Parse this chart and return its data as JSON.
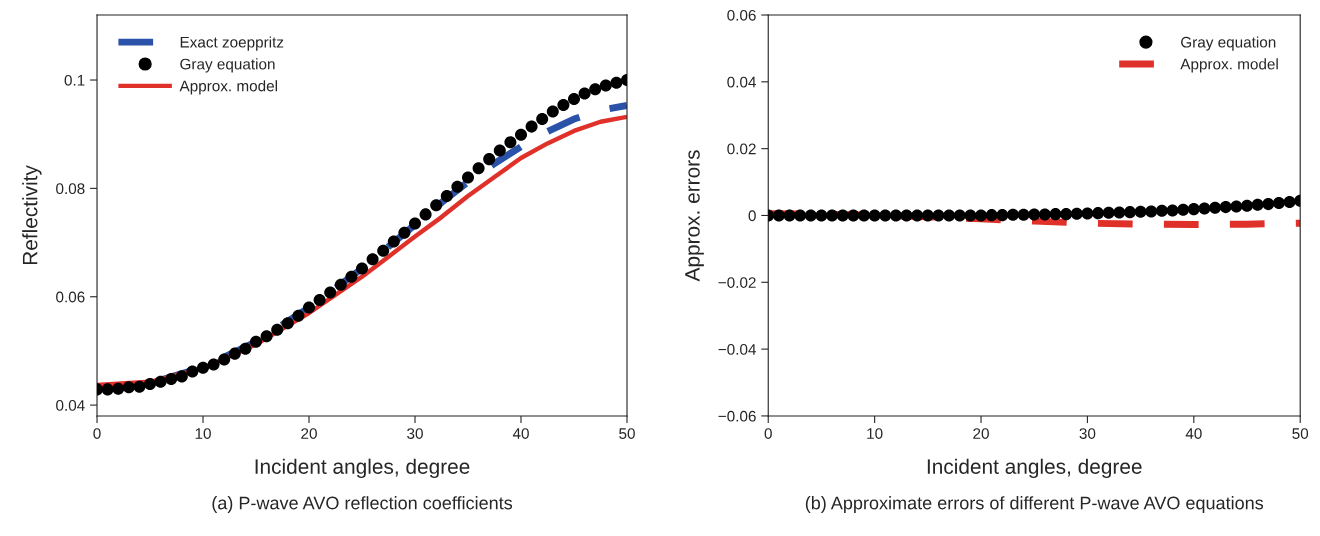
{
  "chart_data": [
    {
      "type": "line",
      "xlabel": "Incident angles, degree",
      "ylabel": "Reflectivity",
      "xlim": [
        0,
        50
      ],
      "ylim": [
        0.038,
        0.112
      ],
      "xticks": [
        0,
        10,
        20,
        30,
        40,
        50
      ],
      "yticks": [
        0.04,
        0.06,
        0.08,
        0.1
      ],
      "legend": "top left",
      "grid": false,
      "annotations": [
        "(a) P-wave AVO reflection coefficients"
      ],
      "series": [
        {
          "name": "Exact zoeppritz",
          "type": "line",
          "line_style": "dashed",
          "color": "#2a52a8",
          "x": [
            0,
            5,
            10,
            15,
            20,
            25,
            30,
            32.5,
            35,
            37.5,
            40,
            42.5,
            45,
            47.5,
            50
          ],
          "values": [
            0.0432,
            0.044,
            0.047,
            0.0517,
            0.058,
            0.0652,
            0.0733,
            0.0774,
            0.0812,
            0.0846,
            0.0877,
            0.0905,
            0.0928,
            0.0944,
            0.0953
          ]
        },
        {
          "name": "Gray equation",
          "type": "scatter",
          "marker": "circle",
          "color": "#000000",
          "x": [
            0,
            1,
            2,
            3,
            4,
            5,
            6,
            7,
            8,
            9,
            10,
            11,
            12,
            13,
            14,
            15,
            16,
            17,
            18,
            19,
            20,
            21,
            22,
            23,
            24,
            25,
            26,
            27,
            28,
            29,
            30,
            31,
            32,
            33,
            34,
            35,
            36,
            37,
            38,
            39,
            40,
            41,
            42,
            43,
            44,
            45,
            46,
            47,
            48,
            49,
            50
          ],
          "values": [
            0.0429,
            0.0429,
            0.043,
            0.0433,
            0.0434,
            0.0439,
            0.0443,
            0.0448,
            0.0453,
            0.0462,
            0.0469,
            0.0475,
            0.0484,
            0.0495,
            0.0504,
            0.0517,
            0.0527,
            0.0539,
            0.0551,
            0.0565,
            0.058,
            0.0594,
            0.0608,
            0.0622,
            0.0637,
            0.0652,
            0.0669,
            0.0685,
            0.0702,
            0.0718,
            0.0735,
            0.0752,
            0.0769,
            0.0786,
            0.0803,
            0.082,
            0.0837,
            0.0854,
            0.087,
            0.0885,
            0.0899,
            0.0914,
            0.0928,
            0.0942,
            0.0954,
            0.0965,
            0.0975,
            0.0983,
            0.099,
            0.0995,
            0.1
          ]
        },
        {
          "name": "Approx. model",
          "type": "line",
          "line_style": "solid",
          "color": "#e0302a",
          "x": [
            0,
            5,
            10,
            15,
            20,
            25,
            27.5,
            30,
            32.5,
            35,
            37.5,
            40,
            42.5,
            45,
            47.5,
            50
          ],
          "values": [
            0.0437,
            0.0443,
            0.0468,
            0.0512,
            0.057,
            0.0637,
            0.0674,
            0.0711,
            0.0747,
            0.0786,
            0.0821,
            0.0856,
            0.0883,
            0.0906,
            0.0923,
            0.0932
          ]
        }
      ]
    },
    {
      "type": "line",
      "xlabel": "Incident angles, degree",
      "ylabel": "Approx. errors",
      "xlim": [
        0,
        50
      ],
      "ylim": [
        -0.06,
        0.06
      ],
      "xticks": [
        0,
        10,
        20,
        30,
        40,
        50
      ],
      "yticks": [
        {
          "value": -0.06,
          "label": "−0.06"
        },
        {
          "value": -0.04,
          "label": "−0.04"
        },
        {
          "value": -0.02,
          "label": "−0.02"
        },
        0,
        0.02,
        0.04,
        0.06
      ],
      "legend": "top right",
      "grid": false,
      "annotations": [
        "(b) Approximate errors of different P-wave AVO equations"
      ],
      "series": [
        {
          "name": "Gray equation",
          "type": "scatter",
          "marker": "circle",
          "color": "#000000",
          "x": [
            0,
            1,
            2,
            3,
            4,
            5,
            6,
            7,
            8,
            9,
            10,
            11,
            12,
            13,
            14,
            15,
            16,
            17,
            18,
            19,
            20,
            21,
            22,
            23,
            24,
            25,
            26,
            27,
            28,
            29,
            30,
            31,
            32,
            33,
            34,
            35,
            36,
            37,
            38,
            39,
            40,
            41,
            42,
            43,
            44,
            45,
            46,
            47,
            48,
            49,
            50
          ],
          "values": [
            0,
            0,
            0,
            0,
            0,
            0,
            0,
            0,
            0,
            0,
            0,
            0,
            0,
            0,
            0,
            0,
            0,
            0,
            0,
            0,
            0,
            0.0001,
            0.0001,
            0.0002,
            0.0002,
            0.0003,
            0.0003,
            0.0004,
            0.0004,
            0.0005,
            0.0006,
            0.0007,
            0.0008,
            0.0009,
            0.001,
            0.0011,
            0.0012,
            0.0014,
            0.0015,
            0.0017,
            0.0019,
            0.0021,
            0.0023,
            0.0025,
            0.0027,
            0.0029,
            0.0032,
            0.0034,
            0.0037,
            0.004,
            0.0044
          ]
        },
        {
          "name": "Approx. model",
          "type": "line",
          "line_style": "dashed",
          "color": "#e0302a",
          "x": [
            0,
            5,
            10,
            15,
            20,
            25,
            30,
            35,
            40,
            45,
            50
          ],
          "values": [
            0.0005,
            0.0004,
            0.0001,
            -0.0004,
            -0.001,
            -0.0017,
            -0.0023,
            -0.0026,
            -0.0027,
            -0.0026,
            -0.0023
          ]
        }
      ]
    }
  ]
}
